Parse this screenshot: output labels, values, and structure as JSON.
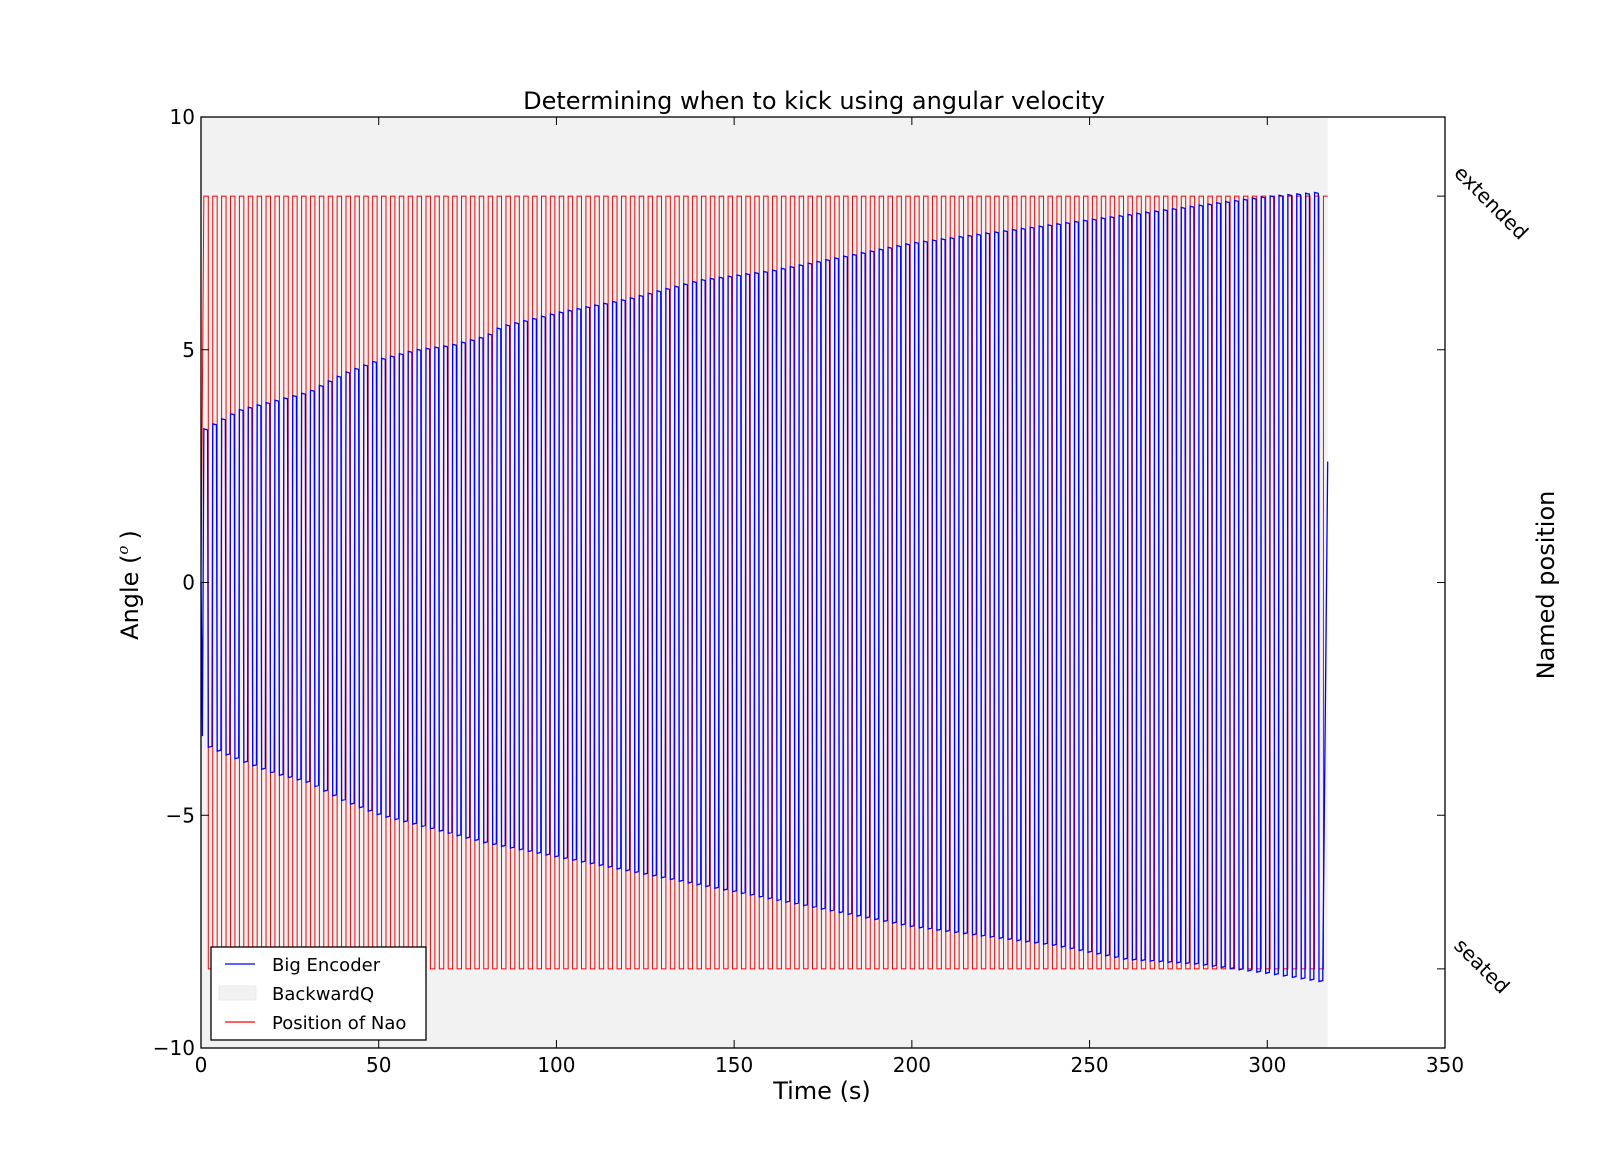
{
  "chart_data": {
    "type": "line",
    "title": "Determining when to kick using angular velocity",
    "xlabel": "Time (s)",
    "ylabel": "Angle (",
    "ylabel_unit_symbol": "o",
    "ylabel_close": ")",
    "right_ylabel": "Named position",
    "xlim": [
      0,
      350
    ],
    "ylim": [
      -10,
      10
    ],
    "x_ticks": [
      {
        "value": 0,
        "label": "0"
      },
      {
        "value": 50,
        "label": "50"
      },
      {
        "value": 100,
        "label": "100"
      },
      {
        "value": 150,
        "label": "150"
      },
      {
        "value": 200,
        "label": "200"
      },
      {
        "value": 250,
        "label": "250"
      },
      {
        "value": 300,
        "label": "300"
      },
      {
        "value": 350,
        "label": "350"
      }
    ],
    "y_ticks": [
      {
        "value": -10,
        "label": "−10"
      },
      {
        "value": -5,
        "label": "−5"
      },
      {
        "value": 0,
        "label": "0"
      },
      {
        "value": 5,
        "label": "5"
      },
      {
        "value": 10,
        "label": "10"
      }
    ],
    "right_ticks": [
      {
        "value": 8.3,
        "label": "extended"
      },
      {
        "value": -8.3,
        "label": "seated"
      }
    ],
    "grid": false,
    "legend_placement": "lower-left",
    "background_span": {
      "name": "BackwardQ",
      "x_start": 0,
      "x_end": 317,
      "color": "#f2f2f2"
    },
    "series": [
      {
        "name": "Big Encoder",
        "color": "#0000ff",
        "x_start": 0.8,
        "x_end": 317,
        "period": 2.5,
        "cycles": 126,
        "peak_envelope": [
          [
            0.8,
            3.3
          ],
          [
            10,
            3.7
          ],
          [
            20,
            3.9
          ],
          [
            30,
            4.1
          ],
          [
            40,
            4.5
          ],
          [
            50,
            4.8
          ],
          [
            60,
            5.0
          ],
          [
            70,
            5.1
          ],
          [
            80,
            5.3
          ],
          [
            84,
            5.5
          ],
          [
            100,
            5.8
          ],
          [
            120,
            6.1
          ],
          [
            140,
            6.5
          ],
          [
            160,
            6.7
          ],
          [
            180,
            7.0
          ],
          [
            200,
            7.3
          ],
          [
            220,
            7.5
          ],
          [
            240,
            7.7
          ],
          [
            260,
            7.9
          ],
          [
            280,
            8.1
          ],
          [
            300,
            8.3
          ],
          [
            317,
            8.4
          ]
        ],
        "trough_envelope": [
          [
            0.8,
            -3.5
          ],
          [
            10,
            -3.8
          ],
          [
            20,
            -4.1
          ],
          [
            30,
            -4.3
          ],
          [
            40,
            -4.7
          ],
          [
            50,
            -5.0
          ],
          [
            60,
            -5.2
          ],
          [
            70,
            -5.4
          ],
          [
            80,
            -5.6
          ],
          [
            100,
            -5.9
          ],
          [
            120,
            -6.2
          ],
          [
            140,
            -6.5
          ],
          [
            160,
            -6.8
          ],
          [
            180,
            -7.1
          ],
          [
            200,
            -7.4
          ],
          [
            220,
            -7.6
          ],
          [
            240,
            -7.8
          ],
          [
            260,
            -8.1
          ],
          [
            280,
            -8.2
          ],
          [
            300,
            -8.4
          ],
          [
            317,
            -8.6
          ]
        ]
      },
      {
        "name": "Position of Nao",
        "color": "#ff0000",
        "type": "square_wave",
        "x_start": 0.8,
        "x_end": 317,
        "period": 2.5,
        "high": 8.3,
        "low": -8.3
      }
    ],
    "legend": [
      {
        "name": "Big Encoder",
        "style": "line",
        "color": "#0000ff"
      },
      {
        "name": "BackwardQ",
        "style": "patch",
        "color": "#f2f2f2"
      },
      {
        "name": "Position of Nao",
        "style": "line",
        "color": "#ff0000"
      }
    ]
  }
}
